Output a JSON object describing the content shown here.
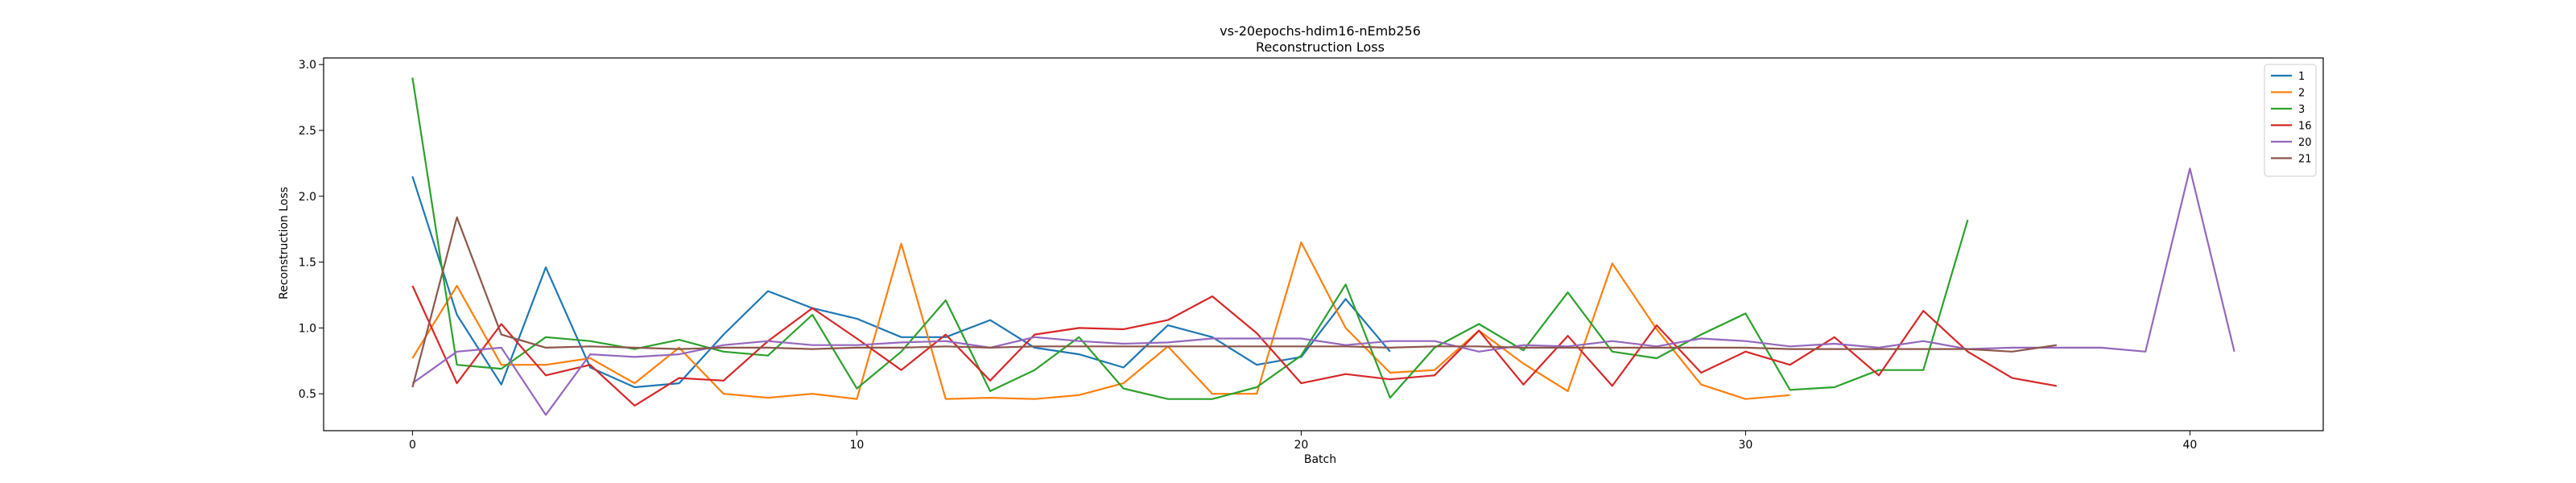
{
  "chart_data": {
    "type": "line",
    "title": "vs-20epochs-hdim16-nEmb256",
    "subtitle": "Reconstruction Loss",
    "xlabel": "Batch",
    "ylabel": "Reconstruction Loss",
    "xlim": [
      -2,
      43
    ],
    "ylim": [
      0.22,
      3.05
    ],
    "xticks": [
      0,
      10,
      20,
      30,
      40
    ],
    "yticks": [
      0.5,
      1.0,
      1.5,
      2.0,
      2.5,
      3.0
    ],
    "ytick_labels": [
      "0.5",
      "1.0",
      "1.5",
      "2.0",
      "2.5",
      "3.0"
    ],
    "grid": false,
    "legend_position": "top-right",
    "series": [
      {
        "name": "1",
        "color": "#1f77b4",
        "values": [
          2.15,
          1.1,
          0.57,
          1.46,
          0.7,
          0.55,
          0.58,
          0.95,
          1.28,
          1.15,
          1.07,
          0.93,
          0.93,
          1.06,
          0.85,
          0.8,
          0.7,
          1.02,
          0.93,
          0.72,
          0.78,
          1.22,
          0.82
        ]
      },
      {
        "name": "2",
        "color": "#ff7f0e",
        "values": [
          0.77,
          1.32,
          0.72,
          0.72,
          0.77,
          0.58,
          0.85,
          0.5,
          0.47,
          0.5,
          0.46,
          1.64,
          0.46,
          0.47,
          0.46,
          0.49,
          0.58,
          0.86,
          0.5,
          0.5,
          1.65,
          1.0,
          0.66,
          0.68,
          0.98,
          0.73,
          0.52,
          1.49,
          0.99,
          0.57,
          0.46,
          0.49
        ]
      },
      {
        "name": "3",
        "color": "#2ca02c",
        "values": [
          2.9,
          0.72,
          0.69,
          0.93,
          0.9,
          0.84,
          0.91,
          0.82,
          0.79,
          1.1,
          0.54,
          0.82,
          1.21,
          0.52,
          0.68,
          0.93,
          0.54,
          0.46,
          0.46,
          0.55,
          0.79,
          1.33,
          0.47,
          0.85,
          1.03,
          0.83,
          1.27,
          0.82,
          0.77,
          0.95,
          1.11,
          0.53,
          0.55,
          0.68,
          0.68,
          1.82
        ]
      },
      {
        "name": "16",
        "color": "#d62728",
        "values": [
          1.32,
          0.58,
          1.03,
          0.64,
          0.72,
          0.41,
          0.62,
          0.6,
          0.9,
          1.15,
          0.92,
          0.68,
          0.95,
          0.6,
          0.95,
          1.0,
          0.99,
          1.06,
          1.24,
          0.96,
          0.58,
          0.65,
          0.61,
          0.64,
          0.98,
          0.57,
          0.94,
          0.56,
          1.02,
          0.66,
          0.82,
          0.72,
          0.93,
          0.64,
          1.13,
          0.82,
          0.62,
          0.56
        ]
      },
      {
        "name": "20",
        "color": "#9467bd",
        "values": [
          0.58,
          0.82,
          0.85,
          0.34,
          0.8,
          0.78,
          0.8,
          0.87,
          0.9,
          0.87,
          0.87,
          0.89,
          0.9,
          0.85,
          0.93,
          0.9,
          0.88,
          0.89,
          0.92,
          0.92,
          0.92,
          0.87,
          0.9,
          0.9,
          0.82,
          0.87,
          0.86,
          0.9,
          0.86,
          0.92,
          0.9,
          0.86,
          0.88,
          0.85,
          0.9,
          0.84,
          0.85,
          0.85,
          0.85,
          0.82,
          2.21,
          0.82
        ]
      },
      {
        "name": "21",
        "color": "#8c564b",
        "values": [
          0.55,
          1.84,
          0.95,
          0.85,
          0.86,
          0.85,
          0.84,
          0.85,
          0.85,
          0.84,
          0.85,
          0.85,
          0.86,
          0.85,
          0.86,
          0.86,
          0.86,
          0.86,
          0.86,
          0.86,
          0.86,
          0.86,
          0.85,
          0.86,
          0.86,
          0.85,
          0.85,
          0.85,
          0.85,
          0.85,
          0.85,
          0.84,
          0.84,
          0.84,
          0.84,
          0.84,
          0.82,
          0.87
        ]
      }
    ]
  }
}
